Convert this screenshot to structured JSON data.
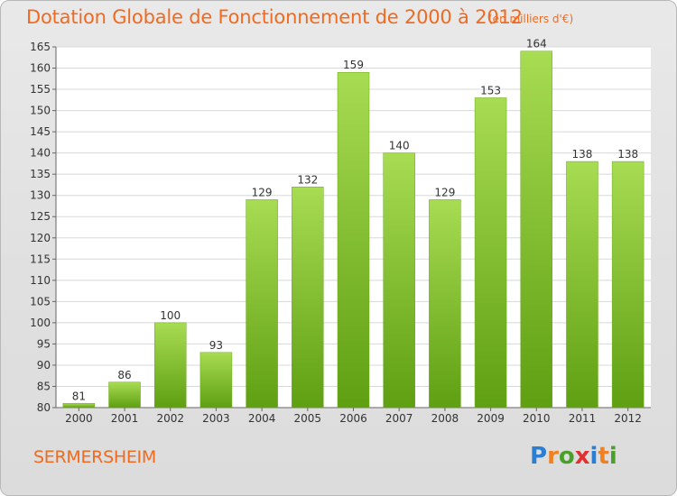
{
  "chart_data": {
    "type": "bar",
    "title": "Dotation Globale de Fonctionnement de 2000 à 2012",
    "unit": "(en milliers d'€)",
    "categories": [
      "2000",
      "2001",
      "2002",
      "2003",
      "2004",
      "2005",
      "2006",
      "2007",
      "2008",
      "2009",
      "2010",
      "2011",
      "2012"
    ],
    "values": [
      81,
      86,
      100,
      93,
      129,
      132,
      159,
      140,
      129,
      153,
      164,
      138,
      138
    ],
    "ylim": [
      80,
      165
    ],
    "yticks": [
      80,
      85,
      90,
      95,
      100,
      105,
      110,
      115,
      120,
      125,
      130,
      135,
      140,
      145,
      150,
      155,
      160,
      165
    ],
    "grid": true,
    "bar_color": "#7fbf2a",
    "bar_color_light": "#a8dc52",
    "bar_color_dark": "#5f9f12"
  },
  "commune": "SERMERSHEIM",
  "logo": {
    "text": "Proxiti",
    "letters": [
      "P",
      "r",
      "o",
      "x",
      "i",
      "t",
      "i"
    ],
    "colors": [
      "#2a7fd4",
      "#f08020",
      "#4aa02a",
      "#e03030",
      "#2a7fd4",
      "#f08020",
      "#4aa02a"
    ]
  }
}
